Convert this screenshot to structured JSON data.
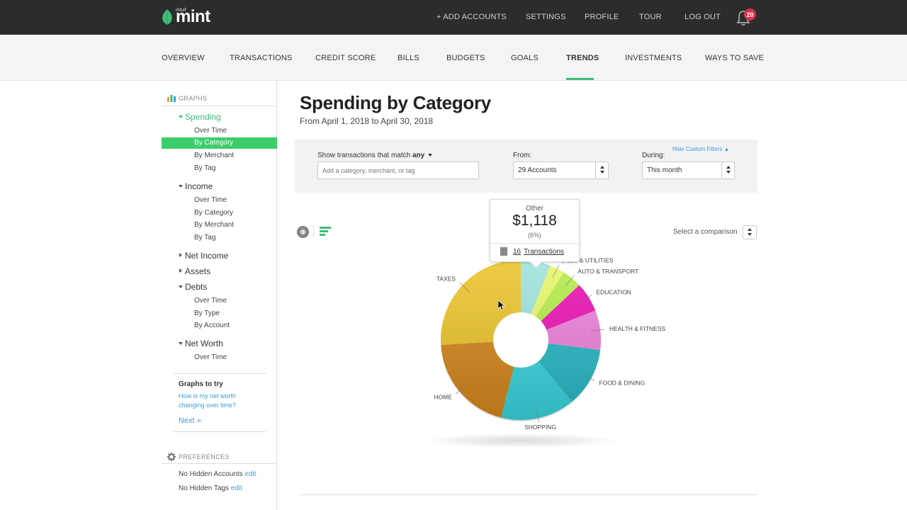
{
  "brand": {
    "logo_small": "intuit",
    "logo_text": "mint",
    "brand_color": "#3cbe79"
  },
  "topnav": {
    "add_accounts": "+ ADD ACCOUNTS",
    "settings": "SETTINGS",
    "profile": "PROFILE",
    "tour": "TOUR",
    "logout": "LOG OUT",
    "notifications": "20"
  },
  "mainnav": {
    "items": [
      "OVERVIEW",
      "TRANSACTIONS",
      "CREDIT SCORE",
      "BILLS",
      "BUDGETS",
      "GOALS",
      "TRENDS",
      "INVESTMENTS",
      "WAYS TO SAVE"
    ],
    "active": "TRENDS"
  },
  "sidebar": {
    "graphs_header": "GRAPHS",
    "spending": {
      "label": "Spending",
      "items": [
        "Over Time",
        "By Category",
        "By Merchant",
        "By Tag"
      ],
      "selected": "By Category"
    },
    "income": {
      "label": "Income",
      "items": [
        "Over Time",
        "By Category",
        "By Merchant",
        "By Tag"
      ]
    },
    "net_income": "Net Income",
    "assets": "Assets",
    "debts": {
      "label": "Debts",
      "items": [
        "Over Time",
        "By Type",
        "By Account"
      ]
    },
    "net_worth": {
      "label": "Net Worth",
      "items": [
        "Over Time"
      ]
    },
    "graphs_to_try": {
      "title": "Graphs to try",
      "link1": "How is my net worth",
      "link2": "changing over time?",
      "next": "Next »"
    },
    "preferences_header": "PREFERENCES",
    "hidden_accounts": "No Hidden Accounts",
    "hidden_tags": "No Hidden Tags",
    "edit": "edit"
  },
  "main": {
    "title": "Spending by Category",
    "subtitle": "From April 1, 2018 to April 30, 2018",
    "filters": {
      "match_label": "Show transactions that match",
      "match_value": "any",
      "search_placeholder": "Add a category, merchant, or tag",
      "from_label": "From:",
      "from_value": "29 Accounts",
      "during_label": "During:",
      "during_value": "This month",
      "hide_filters": "Hide Custom Filters ▲"
    },
    "comparison_label": "Select a comparison"
  },
  "tooltip": {
    "category": "Other",
    "amount": "$1,118",
    "percent": "(6%)",
    "transactions_count": "16",
    "transactions_label": "Transactions"
  },
  "chart_data": {
    "type": "pie",
    "variant": "donut",
    "categories": [
      "Other",
      "Bills & Utilities",
      "Auto & Transport",
      "Education",
      "Health & Fitness",
      "Food & Dining",
      "Shopping",
      "Home",
      "Taxes"
    ],
    "labels": [
      "",
      "BILLS & UTILITIES",
      "AUTO & TRANSPORT",
      "EDUCATION",
      "HEALTH & FITNESS",
      "FOOD & DINING",
      "SHOPPING",
      "HOME",
      "TAXES"
    ],
    "values_percent": [
      6,
      3,
      4,
      6,
      8,
      12,
      15,
      20,
      26
    ],
    "colors": [
      "#9fe3dc",
      "#e7f76a",
      "#b4ec4a",
      "#ec12b4",
      "#ec82da",
      "#28b8c4",
      "#3ad4dc",
      "#d4861c",
      "#ecc42c"
    ],
    "other_amount": "$1,118"
  }
}
